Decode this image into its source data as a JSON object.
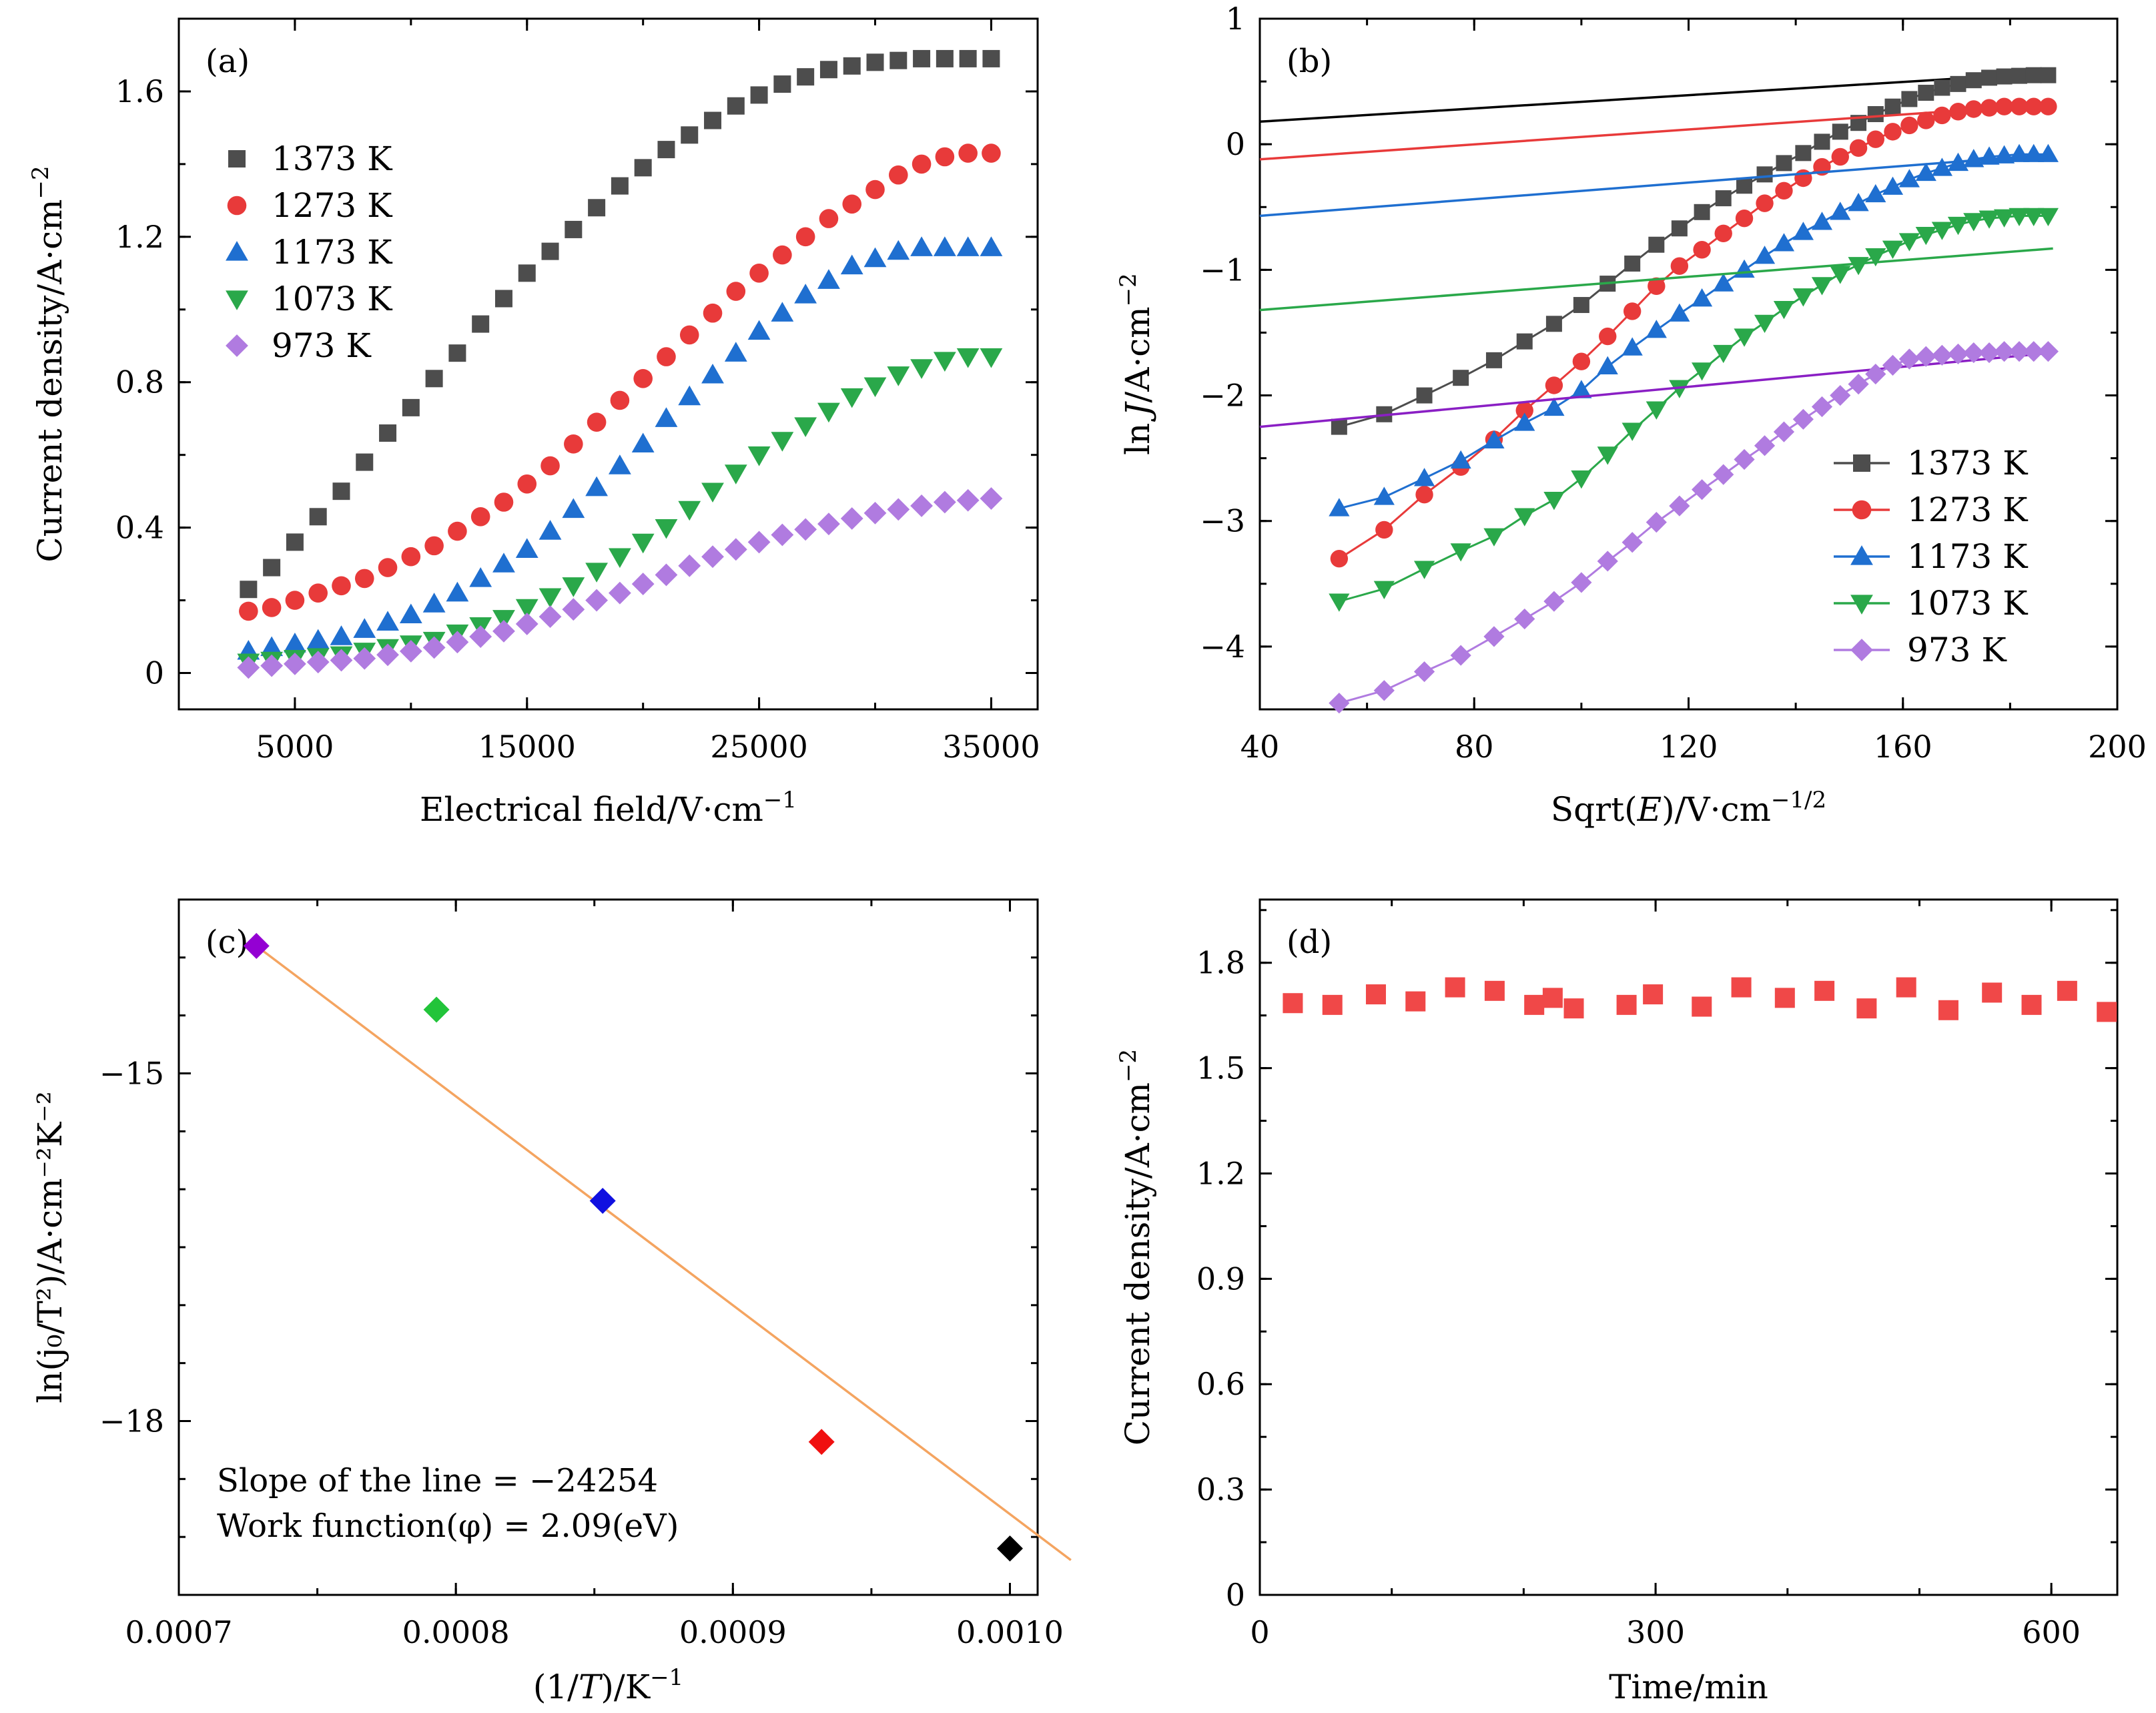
{
  "chart_data": [
    {
      "panel": "(a)",
      "type": "scatter",
      "xlabel": "Electrical field/V·cm",
      "xlabel_sup": "−1",
      "ylabel": "Current density/A·cm",
      "ylabel_sup": "−2",
      "xlim": [
        0,
        37000
      ],
      "ylim": [
        -0.1,
        1.8
      ],
      "xticks": [
        5000,
        15000,
        25000,
        35000
      ],
      "xtick_labels": [
        "5000",
        "15000",
        "25000",
        "35000"
      ],
      "yticks": [
        0,
        0.4,
        0.8,
        1.2,
        1.6
      ],
      "ytick_labels": [
        "0",
        "0.4",
        "0.8",
        "1.2",
        "1.6"
      ],
      "grid": false,
      "legend_position": "upper-left",
      "x": [
        3000,
        4000,
        5000,
        6000,
        7000,
        8000,
        9000,
        10000,
        11000,
        12000,
        13000,
        14000,
        15000,
        16000,
        17000,
        18000,
        19000,
        20000,
        21000,
        22000,
        23000,
        24000,
        25000,
        26000,
        27000,
        28000,
        29000,
        30000,
        31000,
        32000,
        33000,
        34000,
        35000
      ],
      "series": [
        {
          "name": "1373 K",
          "marker": "square",
          "color": "#4d4d4d",
          "values": [
            0.23,
            0.29,
            0.36,
            0.43,
            0.5,
            0.58,
            0.66,
            0.73,
            0.81,
            0.88,
            0.96,
            1.03,
            1.1,
            1.16,
            1.22,
            1.28,
            1.34,
            1.39,
            1.44,
            1.48,
            1.52,
            1.56,
            1.59,
            1.62,
            1.64,
            1.66,
            1.67,
            1.68,
            1.685,
            1.69,
            1.69,
            1.69,
            1.69
          ]
        },
        {
          "name": "1273 K",
          "marker": "circle",
          "color": "#e83a3a",
          "values": [
            0.17,
            0.18,
            0.2,
            0.22,
            0.24,
            0.26,
            0.29,
            0.32,
            0.35,
            0.39,
            0.43,
            0.47,
            0.52,
            0.57,
            0.63,
            0.69,
            0.75,
            0.81,
            0.87,
            0.93,
            0.99,
            1.05,
            1.1,
            1.15,
            1.2,
            1.25,
            1.29,
            1.33,
            1.37,
            1.4,
            1.42,
            1.43,
            1.43
          ]
        },
        {
          "name": "1173 K",
          "marker": "triangle-up",
          "color": "#1f6fd0",
          "values": [
            0.06,
            0.07,
            0.08,
            0.09,
            0.1,
            0.12,
            0.14,
            0.16,
            0.19,
            0.22,
            0.26,
            0.3,
            0.34,
            0.39,
            0.45,
            0.51,
            0.57,
            0.63,
            0.7,
            0.76,
            0.82,
            0.88,
            0.94,
            0.99,
            1.04,
            1.08,
            1.12,
            1.14,
            1.16,
            1.17,
            1.17,
            1.17,
            1.17
          ]
        },
        {
          "name": "1073 K",
          "marker": "triangle-down",
          "color": "#2aa84a",
          "values": [
            0.03,
            0.035,
            0.04,
            0.045,
            0.05,
            0.06,
            0.07,
            0.08,
            0.09,
            0.11,
            0.13,
            0.15,
            0.18,
            0.21,
            0.24,
            0.28,
            0.32,
            0.36,
            0.4,
            0.45,
            0.5,
            0.55,
            0.6,
            0.64,
            0.68,
            0.72,
            0.76,
            0.79,
            0.82,
            0.84,
            0.86,
            0.87,
            0.87
          ]
        },
        {
          "name": "973 K",
          "marker": "diamond",
          "color": "#b07be0",
          "values": [
            0.015,
            0.02,
            0.025,
            0.03,
            0.035,
            0.04,
            0.05,
            0.06,
            0.07,
            0.085,
            0.1,
            0.115,
            0.135,
            0.155,
            0.175,
            0.2,
            0.22,
            0.245,
            0.27,
            0.295,
            0.32,
            0.34,
            0.36,
            0.38,
            0.395,
            0.41,
            0.425,
            0.44,
            0.45,
            0.46,
            0.47,
            0.475,
            0.48
          ]
        }
      ]
    },
    {
      "panel": "(b)",
      "type": "line",
      "xlabel": "Sqrt(",
      "xlabel_var": "E",
      "xlabel_rest": ")/V·cm",
      "xlabel_sup": "−1/2",
      "ylabel_pre": "ln",
      "ylabel_var": "J",
      "ylabel_rest": "/A·cm",
      "ylabel_sup": "−2",
      "xlim": [
        40,
        200
      ],
      "ylim": [
        -4.5,
        1
      ],
      "xticks": [
        40,
        80,
        120,
        160,
        200
      ],
      "xtick_labels": [
        "40",
        "80",
        "120",
        "160",
        "200"
      ],
      "yticks": [
        -4,
        -3,
        -2,
        -1,
        0,
        1
      ],
      "ytick_labels": [
        "−4",
        "−3",
        "−2",
        "−1",
        "0",
        "1"
      ],
      "grid": false,
      "legend_position": "lower-right",
      "series": [
        {
          "name": "1373 K",
          "marker": "square",
          "color": "#4d4d4d",
          "x": [
            54.8,
            63.2,
            70.7,
            77.5,
            83.7,
            89.4,
            94.9,
            100,
            104.9,
            109.5,
            114,
            118.3,
            122.5,
            126.5,
            130.4,
            134.2,
            137.8,
            141.4,
            144.9,
            148.3,
            151.7,
            154.9,
            158.1,
            161.2,
            164.3,
            167.3,
            170.3,
            173.2,
            176.1,
            178.9,
            181.7,
            184.4,
            187.1
          ],
          "y": [
            -2.25,
            -2.15,
            -2.0,
            -1.86,
            -1.72,
            -1.57,
            -1.43,
            -1.28,
            -1.11,
            -0.95,
            -0.8,
            -0.67,
            -0.54,
            -0.43,
            -0.33,
            -0.24,
            -0.15,
            -0.07,
            0.02,
            0.1,
            0.17,
            0.24,
            0.3,
            0.36,
            0.41,
            0.45,
            0.48,
            0.51,
            0.53,
            0.54,
            0.545,
            0.55,
            0.55
          ],
          "fit": [
            [
              40,
              0.18
            ],
            [
              188,
              0.57
            ]
          ]
        },
        {
          "name": "1273 K",
          "marker": "circle",
          "color": "#e83a3a",
          "x": [
            54.8,
            63.2,
            70.7,
            77.5,
            83.7,
            89.4,
            94.9,
            100,
            104.9,
            109.5,
            114,
            118.3,
            122.5,
            126.5,
            130.4,
            134.2,
            137.8,
            141.4,
            144.9,
            148.3,
            151.7,
            154.9,
            158.1,
            161.2,
            164.3,
            167.3,
            170.3,
            173.2,
            176.1,
            178.9,
            181.7,
            184.4,
            187.1
          ],
          "y": [
            -3.3,
            -3.07,
            -2.79,
            -2.57,
            -2.35,
            -2.12,
            -1.92,
            -1.73,
            -1.53,
            -1.33,
            -1.13,
            -0.97,
            -0.84,
            -0.71,
            -0.59,
            -0.47,
            -0.37,
            -0.27,
            -0.18,
            -0.1,
            -0.03,
            0.04,
            0.1,
            0.15,
            0.19,
            0.23,
            0.26,
            0.28,
            0.29,
            0.3,
            0.3,
            0.3,
            0.3
          ],
          "fit": [
            [
              40,
              -0.12
            ],
            [
              188,
              0.32
            ]
          ]
        },
        {
          "name": "1173 K",
          "marker": "triangle-up",
          "color": "#1f6fd0",
          "x": [
            54.8,
            63.2,
            70.7,
            77.5,
            83.7,
            89.4,
            94.9,
            100,
            104.9,
            109.5,
            114,
            118.3,
            122.5,
            126.5,
            130.4,
            134.2,
            137.8,
            141.4,
            144.9,
            148.3,
            151.7,
            154.9,
            158.1,
            161.2,
            164.3,
            167.3,
            170.3,
            173.2,
            176.1,
            178.9,
            181.7,
            184.4,
            187.1
          ],
          "y": [
            -2.9,
            -2.81,
            -2.66,
            -2.52,
            -2.36,
            -2.22,
            -2.1,
            -1.96,
            -1.77,
            -1.62,
            -1.48,
            -1.35,
            -1.23,
            -1.11,
            -1.0,
            -0.89,
            -0.79,
            -0.7,
            -0.62,
            -0.54,
            -0.47,
            -0.4,
            -0.34,
            -0.28,
            -0.23,
            -0.19,
            -0.15,
            -0.12,
            -0.1,
            -0.09,
            -0.08,
            -0.08,
            -0.08
          ],
          "fit": [
            [
              40,
              -0.57
            ],
            [
              188,
              -0.08
            ]
          ]
        },
        {
          "name": "1073 K",
          "marker": "triangle-down",
          "color": "#2aa84a",
          "x": [
            54.8,
            63.2,
            70.7,
            77.5,
            83.7,
            89.4,
            94.9,
            100,
            104.9,
            109.5,
            114,
            118.3,
            122.5,
            126.5,
            130.4,
            134.2,
            137.8,
            141.4,
            144.9,
            148.3,
            151.7,
            154.9,
            158.1,
            161.2,
            164.3,
            167.3,
            170.3,
            173.2,
            176.1,
            178.9,
            181.7,
            184.4,
            187.1
          ],
          "y": [
            -3.64,
            -3.54,
            -3.38,
            -3.24,
            -3.12,
            -2.96,
            -2.83,
            -2.66,
            -2.47,
            -2.28,
            -2.11,
            -1.94,
            -1.8,
            -1.66,
            -1.53,
            -1.42,
            -1.31,
            -1.21,
            -1.12,
            -1.03,
            -0.96,
            -0.89,
            -0.83,
            -0.77,
            -0.72,
            -0.68,
            -0.64,
            -0.61,
            -0.59,
            -0.58,
            -0.57,
            -0.57,
            -0.57
          ],
          "fit": [
            [
              40,
              -1.32
            ],
            [
              188,
              -0.83
            ]
          ]
        },
        {
          "name": "973 K",
          "marker": "diamond",
          "color": "#b07be0",
          "x": [
            54.8,
            63.2,
            70.7,
            77.5,
            83.7,
            89.4,
            94.9,
            100,
            104.9,
            109.5,
            114,
            118.3,
            122.5,
            126.5,
            130.4,
            134.2,
            137.8,
            141.4,
            144.9,
            148.3,
            151.7,
            154.9,
            158.1,
            161.2,
            164.3,
            167.3,
            170.3,
            173.2,
            176.1,
            178.9,
            181.7,
            184.4,
            187.1
          ],
          "y": [
            -4.45,
            -4.35,
            -4.2,
            -4.07,
            -3.92,
            -3.78,
            -3.64,
            -3.49,
            -3.32,
            -3.17,
            -3.01,
            -2.88,
            -2.75,
            -2.63,
            -2.51,
            -2.4,
            -2.29,
            -2.19,
            -2.09,
            -2.0,
            -1.91,
            -1.83,
            -1.76,
            -1.71,
            -1.69,
            -1.68,
            -1.67,
            -1.66,
            -1.66,
            -1.65,
            -1.65,
            -1.65,
            -1.65
          ],
          "fit": [
            [
              40,
              -2.25
            ],
            [
              188,
              -1.66
            ]
          ]
        }
      ]
    },
    {
      "panel": "(c)",
      "type": "scatter",
      "xlabel": "(1/",
      "xlabel_var": "T",
      "xlabel_rest": ")/K",
      "xlabel_sup": "−1",
      "ylabel": "ln(j₀/T²)/A·cm⁻²K⁻²",
      "xlim": [
        0.0007,
        0.00101
      ],
      "ylim": [
        -19.5,
        -13.5
      ],
      "xticks": [
        0.0007,
        0.0008,
        0.0009,
        0.001
      ],
      "xtick_labels": [
        "0.0007",
        "0.0008",
        "0.0009",
        "0.0010"
      ],
      "yticks": [
        -15,
        -18
      ],
      "ytick_labels": [
        "−15",
        "−18"
      ],
      "grid": false,
      "points": [
        {
          "x": 0.000728,
          "y": -13.9,
          "color": "#9400d3"
        },
        {
          "x": 0.000793,
          "y": -14.45,
          "color": "#22c43a"
        },
        {
          "x": 0.000853,
          "y": -16.1,
          "color": "#1010e0"
        },
        {
          "x": 0.000932,
          "y": -18.18,
          "color": "#f01010"
        },
        {
          "x": 0.001,
          "y": -19.1,
          "color": "#000000"
        }
      ],
      "fit": {
        "x": [
          0.000728,
          0.001022
        ],
        "y": [
          -13.9,
          -19.2
        ],
        "color": "#f4a460"
      },
      "annotations": [
        "Slope of the line = −24254",
        "Work function(φ) = 2.09(eV)"
      ]
    },
    {
      "panel": "(d)",
      "type": "scatter",
      "xlabel": "Time/min",
      "ylabel": "Current density/A·cm",
      "ylabel_sup": "−2",
      "xlim": [
        0,
        650
      ],
      "ylim": [
        0,
        1.98
      ],
      "xticks": [
        0,
        300,
        600
      ],
      "xtick_labels": [
        "0",
        "300",
        "600"
      ],
      "yticks": [
        0,
        0.3,
        0.6,
        0.9,
        1.2,
        1.5,
        1.8
      ],
      "ytick_labels": [
        "0",
        "0.3",
        "0.6",
        "0.9",
        "1.2",
        "1.5",
        "1.8"
      ],
      "grid": false,
      "marker": "square",
      "color": "#f04848",
      "x": [
        25,
        55,
        88,
        118,
        148,
        178,
        208,
        222,
        238,
        278,
        298,
        335,
        365,
        398,
        428,
        460,
        490,
        522,
        555,
        585,
        612,
        642
      ],
      "y": [
        1.685,
        1.68,
        1.71,
        1.69,
        1.73,
        1.72,
        1.68,
        1.7,
        1.67,
        1.68,
        1.71,
        1.675,
        1.73,
        1.7,
        1.72,
        1.67,
        1.73,
        1.665,
        1.715,
        1.68,
        1.72,
        1.66
      ]
    }
  ]
}
